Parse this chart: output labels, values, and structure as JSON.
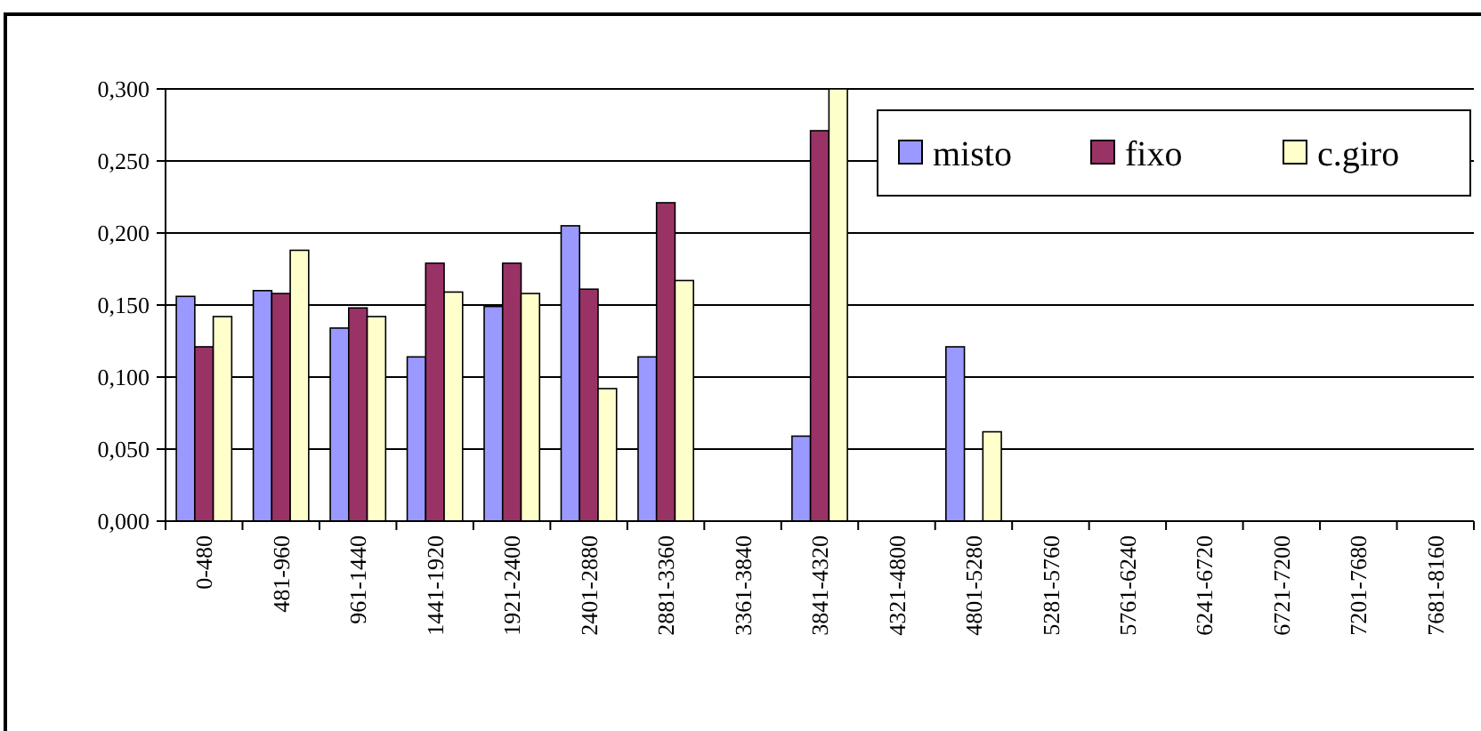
{
  "chart_data": {
    "type": "bar",
    "categories": [
      "0-480",
      "481-960",
      "961-1440",
      "1441-1920",
      "1921-2400",
      "2401-2880",
      "2881-3360",
      "3361-3840",
      "3841-4320",
      "4321-4800",
      "4801-5280",
      "5281-5760",
      "5761-6240",
      "6241-6720",
      "6721-7200",
      "7201-7680",
      "7681-8160"
    ],
    "series": [
      {
        "name": "misto",
        "color": "#9999ff",
        "values": [
          0.156,
          0.16,
          0.134,
          0.114,
          0.149,
          0.205,
          0.114,
          0,
          0.059,
          0,
          0.121,
          0,
          0,
          0,
          0,
          0,
          0
        ]
      },
      {
        "name": "fixo",
        "color": "#993366",
        "values": [
          0.121,
          0.158,
          0.148,
          0.179,
          0.179,
          0.161,
          0.221,
          0,
          0.271,
          0,
          0,
          0,
          0,
          0,
          0,
          0,
          0
        ]
      },
      {
        "name": "c.giro",
        "color": "#ffffcc",
        "values": [
          0.142,
          0.188,
          0.142,
          0.159,
          0.158,
          0.092,
          0.167,
          0,
          0.3,
          0,
          0.062,
          0,
          0,
          0,
          0,
          0,
          0
        ]
      }
    ],
    "ylim": [
      0,
      0.3
    ],
    "yticks": [
      {
        "value": 0,
        "label": "0,000"
      },
      {
        "value": 0.05,
        "label": "0,050"
      },
      {
        "value": 0.1,
        "label": "0,100"
      },
      {
        "value": 0.15,
        "label": "0,150"
      },
      {
        "value": 0.2,
        "label": "0,200"
      },
      {
        "value": 0.25,
        "label": "0,250"
      },
      {
        "value": 0.3,
        "label": "0,300"
      }
    ],
    "grid": "y",
    "legend": "top right"
  }
}
